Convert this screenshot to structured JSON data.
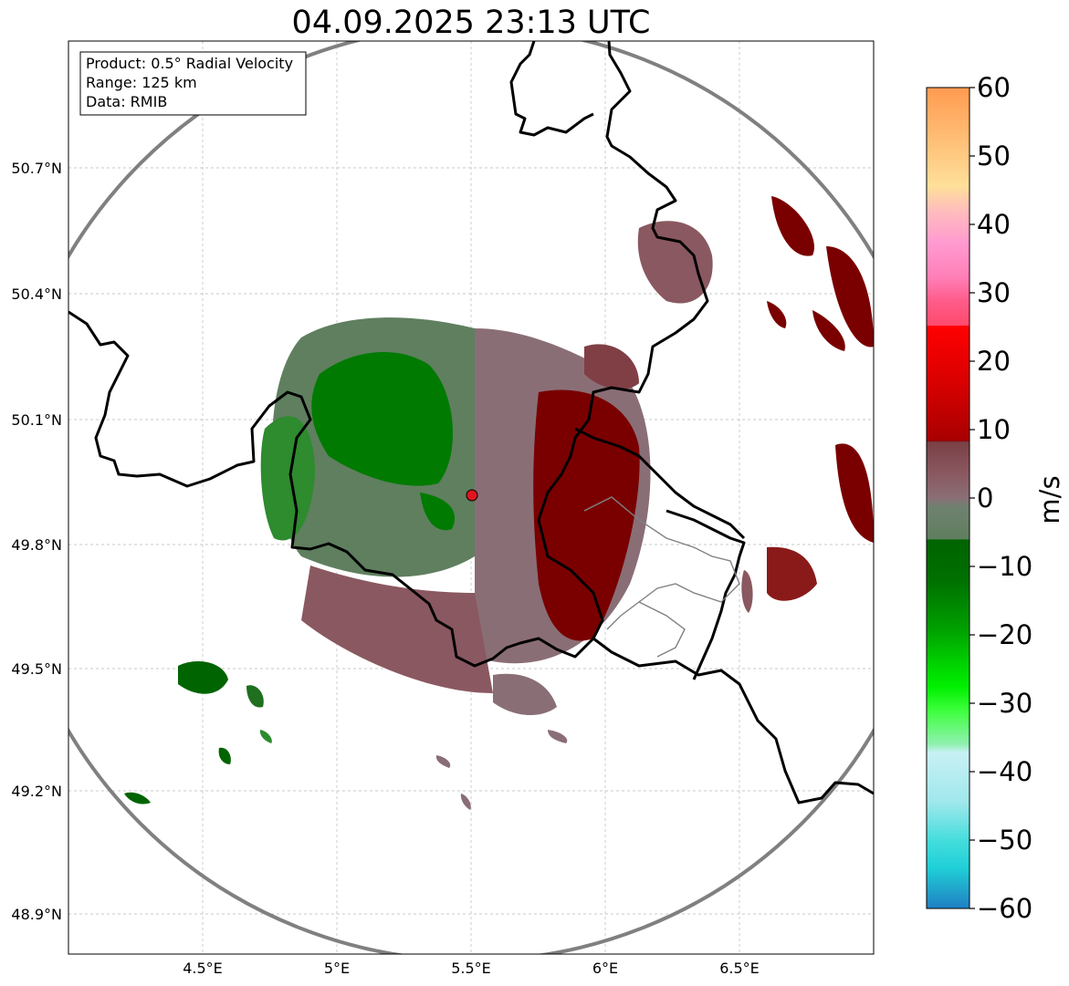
{
  "title": "04.09.2025 23:13 UTC",
  "info_box": {
    "product": "Product: 0.5° Radial Velocity",
    "range": "Range: 125 km",
    "data": "Data: RMIB"
  },
  "map": {
    "lat_ticks": [
      "50.7°N",
      "50.4°N",
      "50.1°N",
      "49.8°N",
      "49.5°N",
      "49.2°N",
      "48.9°N"
    ],
    "lon_ticks": [
      "4.5°E",
      "5°E",
      "5.5°E",
      "6°E",
      "6.5°E"
    ],
    "extent": {
      "lon_min": 4.0,
      "lon_max": 7.0,
      "lat_min": 48.8,
      "lat_max": 50.98
    },
    "radar_site": {
      "lon": 5.505,
      "lat": 49.914,
      "color": "#e0141e"
    },
    "range_ring_color": "#808080",
    "border_color": "#000000",
    "grid": true
  },
  "colorbar": {
    "unit": "m/s",
    "ticks": [
      "60",
      "50",
      "40",
      "30",
      "20",
      "10",
      "0",
      "−10",
      "−20",
      "−30",
      "−40",
      "−50",
      "−60"
    ],
    "range": [
      -60,
      60
    ],
    "colors": {
      "strong_receding": "#7a0000",
      "receding": "#d40000",
      "near_zero_receding": "#8a6e76",
      "near_zero_approaching": "#5f7f5f",
      "approaching": "#007a00",
      "strong_approaching": "#2de0e0",
      "extreme_approaching": "#1f7fc4",
      "extreme_receding": "#ff9b50",
      "pink": "#ff80c0"
    }
  }
}
